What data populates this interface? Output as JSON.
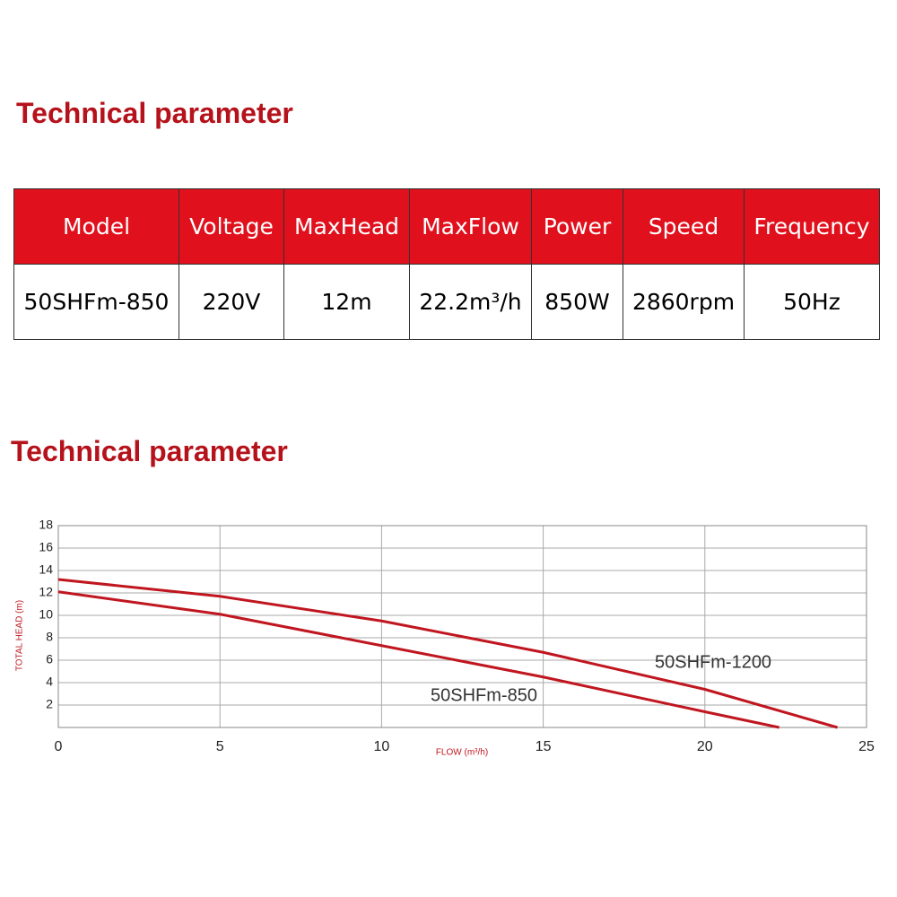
{
  "table_section": {
    "title": "Technical parameter",
    "table": {
      "header": [
        "Model",
        "Voltage",
        "MaxHead",
        "MaxFlow",
        "Power",
        "Speed",
        "Frequency"
      ],
      "rows": [
        [
          "50SHFm-850",
          "220V",
          "12m",
          "22.2m³/h",
          "850W",
          "2860rpm",
          "50Hz"
        ]
      ]
    }
  },
  "chart_section": {
    "title": "Technical parameter"
  },
  "chart_data": {
    "type": "line",
    "xlabel": "FLOW (m³/h)",
    "ylabel": "TOTAL HEAD (m)",
    "xlim": [
      0,
      25
    ],
    "ylim": [
      0,
      18
    ],
    "xticks": [
      0,
      5,
      10,
      15,
      20,
      25
    ],
    "yticks": [
      2,
      4,
      6,
      8,
      10,
      12,
      14,
      16,
      18
    ],
    "grid": true,
    "series": [
      {
        "name": "50SHFm-1200",
        "color": "#c0161f",
        "x": [
          0,
          5,
          10,
          15,
          20,
          24.1
        ],
        "values": [
          13.2,
          11.7,
          9.5,
          6.7,
          3.4,
          0
        ]
      },
      {
        "name": "50SHFm-850",
        "color": "#c0161f",
        "x": [
          0,
          5,
          10,
          15,
          20,
          22.3
        ],
        "values": [
          12.1,
          10.1,
          7.3,
          4.5,
          1.4,
          0
        ]
      }
    ]
  }
}
